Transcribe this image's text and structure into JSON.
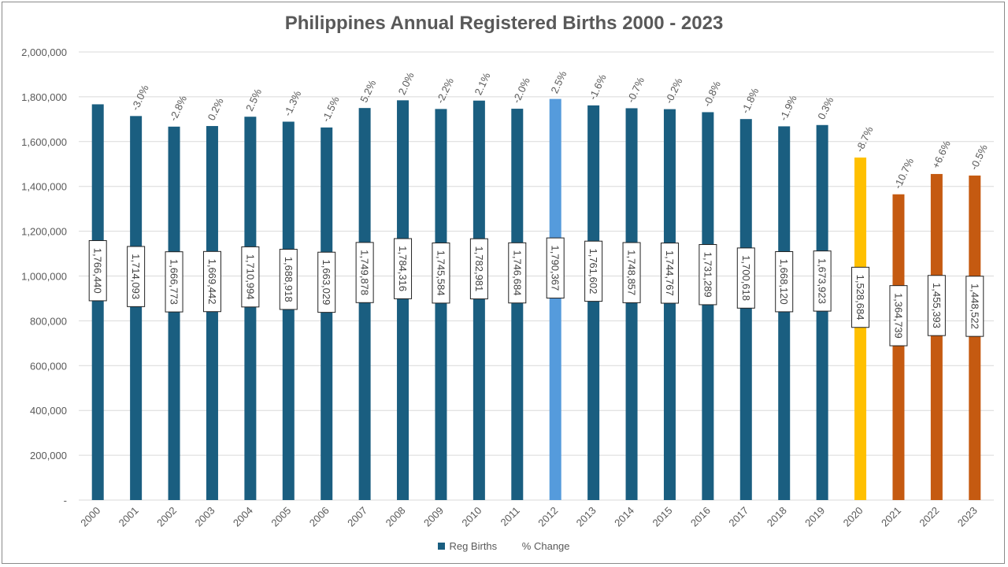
{
  "chart_data": {
    "type": "bar",
    "title": "Philippines Annual Registered Births 2000 - 2023",
    "xlabel": "",
    "ylabel": "",
    "ylim": [
      0,
      2000000
    ],
    "y_ticks": [
      0,
      200000,
      400000,
      600000,
      800000,
      1000000,
      1200000,
      1400000,
      1600000,
      1800000,
      2000000
    ],
    "y_tick_labels": [
      "-",
      "200,000",
      "400,000",
      "600,000",
      "800,000",
      "1,000,000",
      "1,200,000",
      "1,400,000",
      "1,600,000",
      "1,800,000",
      "2,000,000"
    ],
    "grid": true,
    "legend_position": "bottom",
    "categories": [
      "2000",
      "2001",
      "2002",
      "2003",
      "2004",
      "2005",
      "2006",
      "2007",
      "2008",
      "2009",
      "2010",
      "2011",
      "2012",
      "2013",
      "2014",
      "2015",
      "2016",
      "2017",
      "2018",
      "2019",
      "2020",
      "2021",
      "2022",
      "2023"
    ],
    "series": [
      {
        "name": "Reg Births",
        "color": "#1a5e80",
        "values": [
          1766440,
          1714093,
          1666773,
          1669442,
          1710994,
          1688918,
          1663029,
          1749878,
          1784316,
          1745584,
          1782981,
          1746684,
          1790367,
          1761602,
          1748857,
          1744767,
          1731289,
          1700618,
          1668120,
          1673923,
          1528684,
          1364739,
          1455393,
          1448522
        ],
        "value_labels": [
          "1,766,440",
          "1,714,093",
          "1,666,773",
          "1,669,442",
          "1,710,994",
          "1,688,918",
          "1,663,029",
          "1,749,878",
          "1,784,316",
          "1,745,584",
          "1,782,981",
          "1,746,684",
          "1,790,367",
          "1,761,602",
          "1,748,857",
          "1,744,767",
          "1,731,289",
          "1,700,618",
          "1,668,120",
          "1,673,923",
          "1,528,684",
          "1,364,739",
          "1,455,393",
          "1,448,522"
        ],
        "bar_colors": [
          "#1a5e80",
          "#1a5e80",
          "#1a5e80",
          "#1a5e80",
          "#1a5e80",
          "#1a5e80",
          "#1a5e80",
          "#1a5e80",
          "#1a5e80",
          "#1a5e80",
          "#1a5e80",
          "#1a5e80",
          "#559bdc",
          "#1a5e80",
          "#1a5e80",
          "#1a5e80",
          "#1a5e80",
          "#1a5e80",
          "#1a5e80",
          "#1a5e80",
          "#ffc000",
          "#c55a11",
          "#c55a11",
          "#c55a11"
        ]
      },
      {
        "name": "% Change",
        "labels": [
          "",
          "-3.0%",
          "-2.8%",
          "0.2%",
          "2.5%",
          "-1.3%",
          "-1.5%",
          "5.2%",
          "2.0%",
          "-2.2%",
          "2.1%",
          "-2.0%",
          "2.5%",
          "-1.6%",
          "-0.7%",
          "-0.2%",
          "-0.8%",
          "-1.8%",
          "-1.9%",
          "0.3%",
          "-8.7%",
          "-10.7%",
          "+6.6%",
          "-0.5%"
        ]
      }
    ]
  }
}
